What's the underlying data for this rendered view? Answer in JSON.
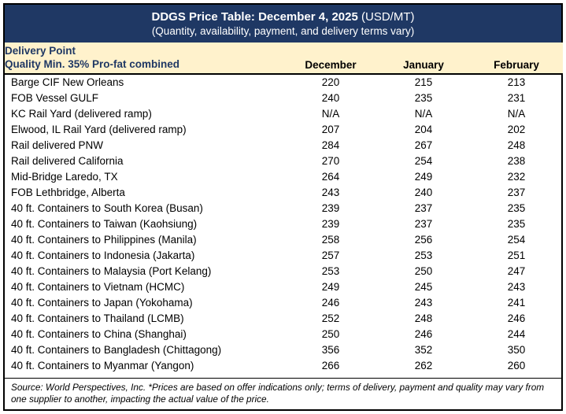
{
  "header": {
    "title": "DDGS Price Table: December 4, 2025",
    "title_suffix": " (USD/MT)",
    "subtitle": "(Quantity, availability, payment, and delivery terms vary)"
  },
  "table_header": {
    "delivery_point": "Delivery Point",
    "quality": "Quality Min. 35% Pro-fat combined",
    "months": [
      "December",
      "January",
      "February"
    ]
  },
  "footer": {
    "text": "Source: World Perspectives, Inc. *Prices are based on offer indications only; terms of delivery, payment and quality may vary from one supplier to another, impacting the actual value of the price."
  },
  "colors": {
    "title_band_bg": "#1F3864",
    "title_band_text": "#FFFFFF",
    "column_header_bg": "#FFF2CC",
    "column_header_text": "#1F3864",
    "border": "#000000"
  },
  "chart_data": {
    "type": "table",
    "title": "DDGS Price Table: December 4, 2025 (USD/MT)",
    "subtitle": "(Quantity, availability, payment, and delivery terms vary)",
    "columns": [
      "Delivery Point / Quality Min. 35% Pro-fat combined",
      "December",
      "January",
      "February"
    ],
    "rows": [
      {
        "label": "Barge CIF New Orleans",
        "values": [
          "220",
          "215",
          "213"
        ]
      },
      {
        "label": "FOB Vessel GULF",
        "values": [
          "240",
          "235",
          "231"
        ]
      },
      {
        "label": "KC Rail Yard (delivered ramp)",
        "values": [
          "N/A",
          "N/A",
          "N/A"
        ]
      },
      {
        "label": "Elwood, IL Rail Yard (delivered ramp)",
        "values": [
          "207",
          "204",
          "202"
        ]
      },
      {
        "label": "Rail delivered PNW",
        "values": [
          "284",
          "267",
          "248"
        ]
      },
      {
        "label": "Rail delivered California",
        "values": [
          "270",
          "254",
          "238"
        ]
      },
      {
        "label": "Mid-Bridge Laredo, TX",
        "values": [
          "264",
          "249",
          "232"
        ]
      },
      {
        "label": "FOB Lethbridge, Alberta",
        "values": [
          "243",
          "240",
          "237"
        ]
      },
      {
        "label": "40 ft. Containers to South Korea (Busan)",
        "values": [
          "239",
          "237",
          "235"
        ]
      },
      {
        "label": "40 ft. Containers to Taiwan (Kaohsiung)",
        "values": [
          "239",
          "237",
          "235"
        ]
      },
      {
        "label": "40 ft. Containers to Philippines (Manila)",
        "values": [
          "258",
          "256",
          "254"
        ]
      },
      {
        "label": "40 ft. Containers to Indonesia (Jakarta)",
        "values": [
          "257",
          "253",
          "251"
        ]
      },
      {
        "label": "40 ft. Containers to Malaysia (Port Kelang)",
        "values": [
          "253",
          "250",
          "247"
        ]
      },
      {
        "label": "40 ft. Containers to Vietnam (HCMC)",
        "values": [
          "249",
          "245",
          "243"
        ]
      },
      {
        "label": "40 ft. Containers to Japan (Yokohama)",
        "values": [
          "246",
          "243",
          "241"
        ]
      },
      {
        "label": "40 ft. Containers to Thailand (LCMB)",
        "values": [
          "252",
          "248",
          "246"
        ]
      },
      {
        "label": "40 ft. Containers to China (Shanghai)",
        "values": [
          "250",
          "246",
          "244"
        ]
      },
      {
        "label": "40 ft. Containers to Bangladesh (Chittagong)",
        "values": [
          "356",
          "352",
          "350"
        ]
      },
      {
        "label": "40 ft. Containers to Myanmar (Yangon)",
        "values": [
          "266",
          "262",
          "260"
        ]
      }
    ]
  }
}
